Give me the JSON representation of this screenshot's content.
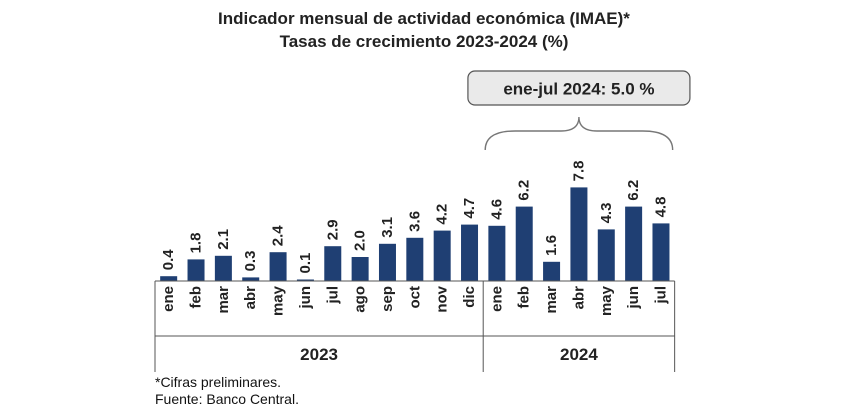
{
  "chart_data": {
    "type": "bar",
    "title": "Indicador mensual de actividad económica (IMAE)*",
    "subtitle": "Tasas de crecimiento 2023-2024 (%)",
    "categories": [
      "ene",
      "feb",
      "mar",
      "abr",
      "may",
      "jun",
      "jul",
      "ago",
      "sep",
      "oct",
      "nov",
      "dic",
      "ene",
      "feb",
      "mar",
      "abr",
      "may",
      "jun",
      "jul"
    ],
    "value_labels": [
      "0.4",
      "1.8",
      "2.1",
      "0.3",
      "2.4",
      "0.1",
      "2.9",
      "2.0",
      "3.1",
      "3.6",
      "4.2",
      "4.7",
      "4.6",
      "6.2",
      "1.6",
      "7.8",
      "4.3",
      "6.2",
      "4.8"
    ],
    "values": [
      0.4,
      1.8,
      2.1,
      0.3,
      2.4,
      0.1,
      2.9,
      2.0,
      3.1,
      3.6,
      4.2,
      4.7,
      4.6,
      6.2,
      1.6,
      7.8,
      4.3,
      6.2,
      4.8
    ],
    "year_groups": [
      {
        "label": "2023",
        "count": 12
      },
      {
        "label": "2024",
        "count": 7
      }
    ],
    "ylim": [
      0,
      8.5
    ],
    "grid": false,
    "legend": "none",
    "bar_color": "#1f3f73",
    "callout": {
      "text": "ene-jul 2024: 5.0 %",
      "applies_to_group": "2024"
    }
  },
  "footnotes": {
    "note": "*Cifras preliminares.",
    "source": "Fuente: Banco Central."
  }
}
